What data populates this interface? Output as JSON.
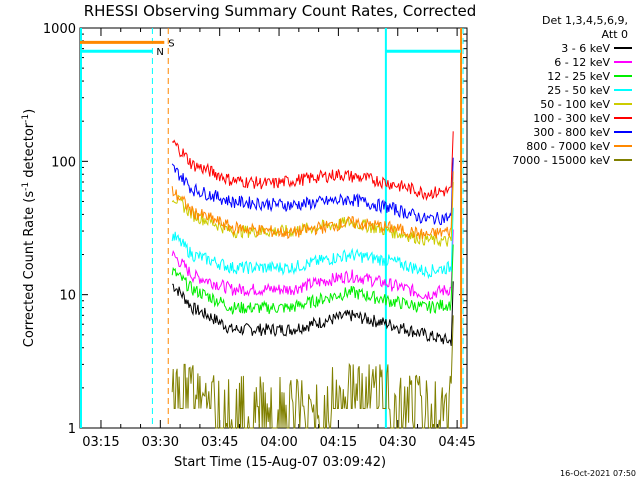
{
  "chart_data": {
    "type": "line",
    "title": "RHESSI Observing Summary Count Rates, Corrected",
    "xlabel": "Start Time (15-Aug-07 03:09:42)",
    "ylabel": "Corrected Count Rate (s⁻¹ detector⁻¹)",
    "ylabel_main": "Corrected Count Rate (s",
    "ylabel_sup1": "-1",
    "ylabel_mid": " detector",
    "ylabel_sup2": "-1",
    "ylabel_end": ")",
    "y_scale": "log",
    "ylim": [
      1,
      1000
    ],
    "xlim": [
      "03:09:42",
      "04:47:30"
    ],
    "x_ticks": [
      "03:15",
      "03:30",
      "03:45",
      "04:00",
      "04:15",
      "04:30",
      "04:45"
    ],
    "y_ticks": [
      "1",
      "10",
      "100",
      "1000"
    ],
    "legend_title": [
      "Det 1,3,4,5,6,9,",
      "Att 0"
    ],
    "legend_position": "right",
    "timestamp": "16-Oct-2021 07:50",
    "data_start": "03:33:00",
    "data_end": "04:43:30",
    "series": [
      {
        "name": "3 - 6 keV",
        "color": "#000000",
        "values": [
          [
            0,
            12
          ],
          [
            5,
            8
          ],
          [
            15,
            5.5
          ],
          [
            30,
            5.5
          ],
          [
            45,
            7
          ],
          [
            55,
            6
          ],
          [
            64,
            5
          ],
          [
            70,
            4.5
          ]
        ]
      },
      {
        "name": "6 - 12 keV",
        "color": "#ff00ff",
        "values": [
          [
            0,
            20
          ],
          [
            5,
            14
          ],
          [
            15,
            11
          ],
          [
            30,
            11
          ],
          [
            45,
            14
          ],
          [
            55,
            12
          ],
          [
            64,
            10
          ],
          [
            70,
            11
          ]
        ]
      },
      {
        "name": "12 - 25 keV",
        "color": "#00ee00",
        "values": [
          [
            0,
            15
          ],
          [
            5,
            11
          ],
          [
            15,
            8
          ],
          [
            30,
            8
          ],
          [
            45,
            10.5
          ],
          [
            55,
            9
          ],
          [
            64,
            8
          ],
          [
            70,
            8.5
          ]
        ]
      },
      {
        "name": "25 - 50 keV",
        "color": "#00ffff",
        "values": [
          [
            0,
            28
          ],
          [
            5,
            20
          ],
          [
            15,
            16
          ],
          [
            30,
            16
          ],
          [
            45,
            20
          ],
          [
            55,
            18
          ],
          [
            64,
            15
          ],
          [
            70,
            16
          ]
        ]
      },
      {
        "name": "50 - 100 keV",
        "color": "#cccc00",
        "values": [
          [
            0,
            55
          ],
          [
            5,
            40
          ],
          [
            15,
            30
          ],
          [
            30,
            30
          ],
          [
            45,
            35
          ],
          [
            55,
            30
          ],
          [
            64,
            26
          ],
          [
            70,
            25
          ]
        ]
      },
      {
        "name": "100 - 300 keV",
        "color": "#ff0000",
        "values": [
          [
            0,
            140
          ],
          [
            5,
            95
          ],
          [
            15,
            72
          ],
          [
            25,
            68
          ],
          [
            42,
            80
          ],
          [
            52,
            72
          ],
          [
            64,
            58
          ],
          [
            70,
            60
          ]
        ]
      },
      {
        "name": "300 - 800 keV",
        "color": "#0000ff",
        "values": [
          [
            0,
            90
          ],
          [
            5,
            62
          ],
          [
            15,
            50
          ],
          [
            30,
            47
          ],
          [
            45,
            52
          ],
          [
            55,
            45
          ],
          [
            64,
            37
          ],
          [
            70,
            38
          ]
        ]
      },
      {
        "name": "800 - 7000 keV",
        "color": "#ff8800",
        "values": [
          [
            0,
            60
          ],
          [
            5,
            42
          ],
          [
            15,
            32
          ],
          [
            30,
            29
          ],
          [
            45,
            35
          ],
          [
            55,
            32
          ],
          [
            64,
            28
          ],
          [
            70,
            30
          ]
        ]
      },
      {
        "name": "7000 - 15000 keV",
        "color": "#808000",
        "values": [
          [
            0,
            2
          ],
          [
            3,
            1.5
          ],
          [
            10,
            1
          ],
          [
            30,
            1
          ],
          [
            40,
            1.5
          ],
          [
            55,
            1.5
          ],
          [
            60,
            1
          ],
          [
            70,
            1
          ]
        ]
      }
    ],
    "markers": [
      {
        "label": "S",
        "color": "#ff8800",
        "level": 780,
        "from": "03:09:42",
        "to": "03:31:00"
      },
      {
        "label": "N",
        "color": "#00ffff",
        "level": 670,
        "from": "03:09:42",
        "to": "03:28:00"
      }
    ]
  }
}
